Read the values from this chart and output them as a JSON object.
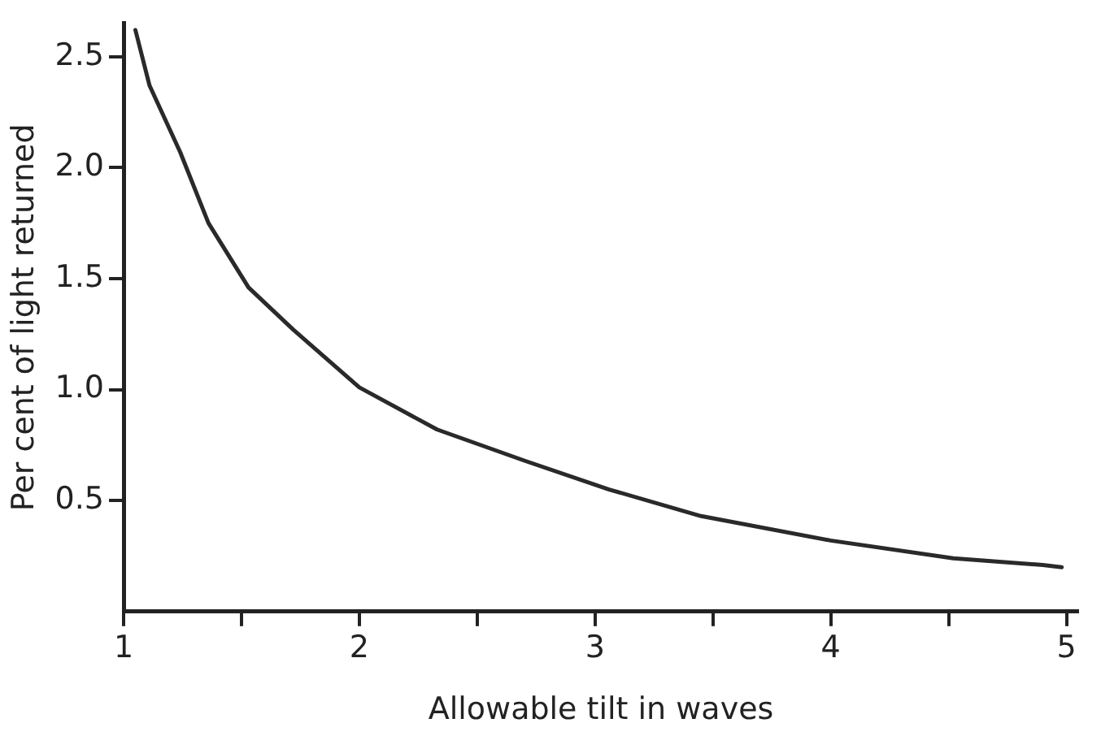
{
  "chart_data": {
    "type": "line",
    "xlabel": "Allowable tilt in waves",
    "ylabel": "Per cent of light returned",
    "series": [
      {
        "color": "#2a2a2a",
        "x": [
          1.05,
          1.11,
          1.24,
          1.36,
          1.53,
          1.72,
          2.0,
          2.33,
          2.7,
          3.06,
          3.45,
          4.0,
          4.52,
          4.9,
          4.98
        ],
        "values": [
          2.62,
          2.37,
          2.07,
          1.75,
          1.46,
          1.27,
          1.01,
          0.82,
          0.68,
          0.55,
          0.43,
          0.32,
          0.24,
          0.21,
          0.2
        ]
      }
    ],
    "xlim": [
      1,
      5.05
    ],
    "ylim": [
      0,
      2.65
    ],
    "xticks": [
      1,
      {
        "value": 1.5,
        "label": null
      },
      2,
      {
        "value": 2.5,
        "label": null
      },
      3,
      {
        "value": 3.5,
        "label": null
      },
      4,
      {
        "value": 4.5,
        "label": null
      },
      5
    ],
    "yticks": [
      {
        "value": 0.5,
        "label": "0.5"
      },
      {
        "value": 1,
        "label": "1.0"
      },
      {
        "value": 1.5,
        "label": "1.5"
      },
      {
        "value": 2,
        "label": "2.0"
      },
      {
        "value": 2.5,
        "label": "2.5"
      }
    ],
    "grid": false,
    "legend": false,
    "marker": "none",
    "line_style": "solid"
  }
}
